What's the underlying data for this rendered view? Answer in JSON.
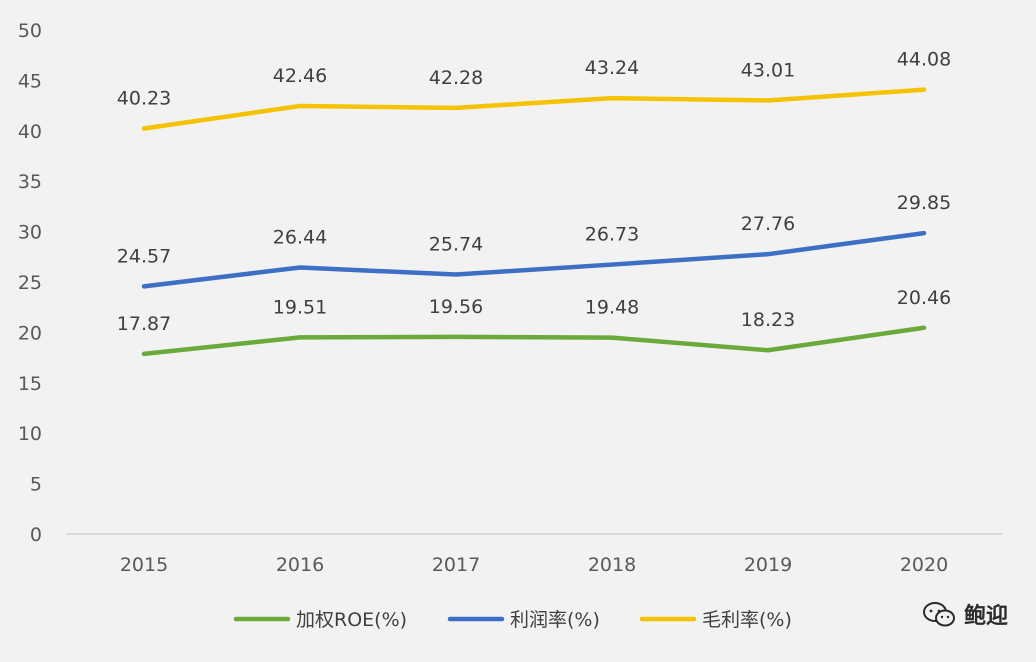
{
  "chart_data": {
    "type": "line",
    "categories": [
      "2015",
      "2016",
      "2017",
      "2018",
      "2019",
      "2020"
    ],
    "ylim": [
      0,
      50
    ],
    "yticks": [
      0,
      5,
      10,
      15,
      20,
      25,
      30,
      35,
      40,
      45,
      50
    ],
    "grid": false,
    "legend_position": "bottom",
    "series": [
      {
        "name": "加权ROE(%)",
        "color": "#6aaa3a",
        "values": [
          17.87,
          19.51,
          19.56,
          19.48,
          18.23,
          20.46
        ],
        "labels": [
          "17.87",
          "19.51",
          "19.56",
          "19.48",
          "18.23",
          "20.46"
        ]
      },
      {
        "name": "利润率(%)",
        "color": "#3d6fc4",
        "values": [
          24.57,
          26.44,
          25.74,
          26.73,
          27.76,
          29.85
        ],
        "labels": [
          "24.57",
          "26.44",
          "25.74",
          "26.73",
          "27.76",
          "29.85"
        ]
      },
      {
        "name": "毛利率(%)",
        "color": "#f5c200",
        "values": [
          40.23,
          42.46,
          42.28,
          43.24,
          43.01,
          44.08
        ],
        "labels": [
          "40.23",
          "42.46",
          "42.28",
          "43.24",
          "43.01",
          "44.08"
        ]
      }
    ]
  },
  "watermark": {
    "text": "鲍迎",
    "icon": "wechat-icon"
  }
}
